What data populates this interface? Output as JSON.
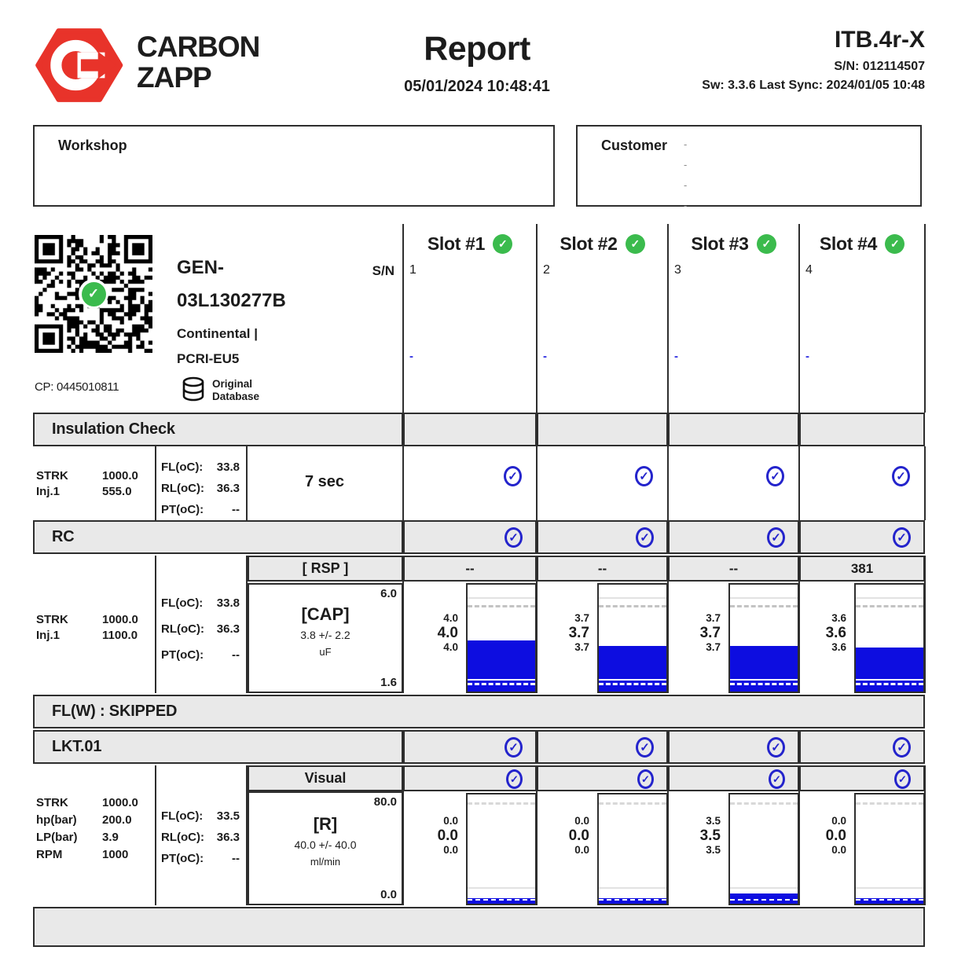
{
  "brand": {
    "line1": "CARBON",
    "line2": "ZAPP"
  },
  "report": {
    "title": "Report",
    "datetime": "05/01/2024 10:48:41"
  },
  "device": {
    "model": "ITB.4r-X",
    "serial": "S/N: 012114507",
    "sync": "Sw: 3.3.6 Last Sync: 2024/01/05 10:48"
  },
  "workshop": {
    "label": "Workshop"
  },
  "customer": {
    "label": "Customer",
    "placeholder_rows": [
      "-",
      "-",
      "-",
      "-"
    ]
  },
  "injector": {
    "name_line1": "GEN-",
    "name_line2": "03L130277B",
    "brand": "Continental |",
    "type": "PCRI-EU5",
    "cp": "CP: 0445010811",
    "sn_label": "S/N",
    "db_line1": "Original",
    "db_line2": "Database"
  },
  "slots": [
    {
      "label": "Slot #1",
      "num": "1",
      "dash": "-",
      "pass": true
    },
    {
      "label": "Slot #2",
      "num": "2",
      "dash": "-",
      "pass": true
    },
    {
      "label": "Slot #3",
      "num": "3",
      "dash": "-",
      "pass": true
    },
    {
      "label": "Slot #4",
      "num": "4",
      "dash": "-",
      "pass": true
    }
  ],
  "insulation": {
    "title": "Insulation Check",
    "params": [
      [
        "STRK",
        "1000.0"
      ],
      [
        "Inj.1",
        "555.0"
      ]
    ],
    "temps": [
      [
        "FL(oC):",
        "33.8"
      ],
      [
        "RL(oC):",
        "36.3"
      ],
      [
        "PT(oC):",
        "--"
      ]
    ],
    "duration": "7 sec",
    "checks": [
      true,
      true,
      true,
      true
    ]
  },
  "rc": {
    "title": "RC",
    "checks": [
      true,
      true,
      true,
      true
    ],
    "rsp_label": "[ RSP ]",
    "rsp_values": [
      "--",
      "--",
      "--",
      "381"
    ],
    "params": [
      [
        "STRK",
        "1000.0"
      ],
      [
        "Inj.1",
        "1100.0"
      ]
    ],
    "temps": [
      [
        "FL(oC):",
        "33.8"
      ],
      [
        "RL(oC):",
        "36.3"
      ],
      [
        "PT(oC):",
        "--"
      ]
    ]
  },
  "flw": {
    "title": "FL(W) : SKIPPED"
  },
  "lkt": {
    "title": "LKT.01",
    "checks": [
      true,
      true,
      true,
      true
    ]
  },
  "visual": {
    "title": "Visual",
    "checks": [
      true,
      true,
      true,
      true
    ]
  },
  "r_test": {
    "params": [
      [
        "STRK",
        "1000.0"
      ],
      [
        "hp(bar)",
        "200.0"
      ],
      [
        "LP(bar)",
        "3.9"
      ],
      [
        "RPM",
        "1000"
      ]
    ],
    "temps": [
      [
        "FL(oC):",
        "33.5"
      ],
      [
        "RL(oC):",
        "36.3"
      ],
      [
        "PT(oC):",
        "--"
      ]
    ]
  },
  "chart_data": [
    {
      "type": "bar",
      "title": "[CAP]",
      "tolerance": "3.8 +/- 2.2",
      "unit": "uF",
      "axis_top_label": "6.0",
      "axis_bottom_label": "1.6",
      "ylim": [
        1.6,
        6.0
      ],
      "categories": [
        "Slot #1",
        "Slot #2",
        "Slot #3",
        "Slot #4"
      ],
      "values": [
        4.0,
        3.7,
        3.7,
        3.6
      ],
      "value_labels": [
        [
          "4.0",
          "4.0",
          "4.0"
        ],
        [
          "3.7",
          "3.7",
          "3.7"
        ],
        [
          "3.7",
          "3.7",
          "3.7"
        ],
        [
          "3.6",
          "3.6",
          "3.6"
        ]
      ],
      "bar_color": "#0d0de0"
    },
    {
      "type": "bar",
      "title": "[R]",
      "tolerance": "40.0 +/- 40.0",
      "unit": "ml/min",
      "axis_top_label": "80.0",
      "axis_bottom_label": "0.0",
      "ylim": [
        0.0,
        80.0
      ],
      "categories": [
        "Slot #1",
        "Slot #2",
        "Slot #3",
        "Slot #4"
      ],
      "values": [
        0.0,
        0.0,
        3.5,
        0.0
      ],
      "value_labels": [
        [
          "0.0",
          "0.0",
          "0.0"
        ],
        [
          "0.0",
          "0.0",
          "0.0"
        ],
        [
          "3.5",
          "3.5",
          "3.5"
        ],
        [
          "0.0",
          "0.0",
          "0.0"
        ]
      ],
      "bar_color": "#0d0de0"
    }
  ],
  "colors": {
    "bar_blue": "#0d0de0",
    "check_blue": "#2424cc",
    "pass_green": "#3bbb4d",
    "row_gray": "#e9e9e9",
    "border": "#2e2e2e",
    "logo_red": "#e8332a"
  }
}
